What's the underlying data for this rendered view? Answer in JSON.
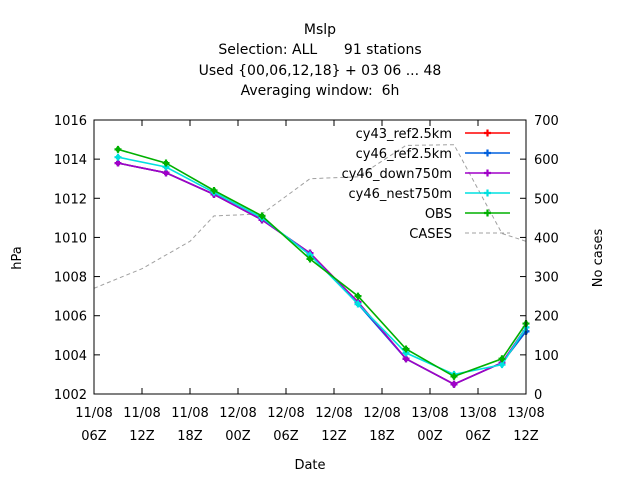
{
  "chart_data": {
    "type": "line",
    "title": "Mslp",
    "subtitle_lines": [
      "Selection: ALL      91 stations",
      "Used {00,06,12,18} + 03 06 ... 48",
      "Averaging window:  6h"
    ],
    "xlabel": "Date",
    "ylabel": "hPa",
    "y2label": "No cases",
    "xlim": [
      0,
      54
    ],
    "ylim": [
      1002,
      1016
    ],
    "y2lim": [
      0,
      700
    ],
    "x_ticks": [
      {
        "x": 0,
        "line1": "11/08",
        "line2": "06Z"
      },
      {
        "x": 6,
        "line1": "11/08",
        "line2": "12Z"
      },
      {
        "x": 12,
        "line1": "11/08",
        "line2": "18Z"
      },
      {
        "x": 18,
        "line1": "12/08",
        "line2": "00Z"
      },
      {
        "x": 24,
        "line1": "12/08",
        "line2": "06Z"
      },
      {
        "x": 30,
        "line1": "12/08",
        "line2": "12Z"
      },
      {
        "x": 36,
        "line1": "12/08",
        "line2": "18Z"
      },
      {
        "x": 42,
        "line1": "13/08",
        "line2": "00Z"
      },
      {
        "x": 48,
        "line1": "13/08",
        "line2": "06Z"
      },
      {
        "x": 54,
        "line1": "13/08",
        "line2": "12Z"
      }
    ],
    "y_ticks": [
      "1002",
      "1004",
      "1006",
      "1008",
      "1010",
      "1012",
      "1014",
      "1016"
    ],
    "y2_ticks": [
      "0",
      "100",
      "200",
      "300",
      "400",
      "500",
      "600",
      "700"
    ],
    "x": [
      3,
      9,
      15,
      21,
      27,
      33,
      39,
      45,
      51,
      57
    ],
    "series": [
      {
        "name": "cy43_ref2.5km",
        "color": "#ff0000",
        "marker": "plus",
        "values": [
          1013.8,
          1013.3,
          1012.2,
          1010.9,
          1009.2,
          1006.7,
          1003.8,
          1002.5,
          1003.6,
          1005.2
        ]
      },
      {
        "name": "cy46_ref2.5km",
        "color": "#0060dd",
        "marker": "plus",
        "values": [
          1013.8,
          1013.3,
          1012.2,
          1010.9,
          1009.2,
          1006.6,
          1003.8,
          1002.5,
          1003.6,
          1005.2
        ]
      },
      {
        "name": "cy46_down750m",
        "color": "#a000c8",
        "marker": "plus",
        "values": [
          1013.8,
          1013.3,
          1012.2,
          1010.9,
          1009.2,
          1006.7,
          1003.8,
          1002.5,
          1003.6,
          1005.4
        ]
      },
      {
        "name": "cy46_nest750m",
        "color": "#00e0e0",
        "marker": "plus",
        "values": [
          1014.1,
          1013.6,
          1012.3,
          1011.0,
          1009.1,
          1006.6,
          1004.1,
          1003.0,
          1003.5,
          1005.4
        ]
      },
      {
        "name": "OBS",
        "color": "#00b000",
        "marker": "plus",
        "values": [
          1014.5,
          1013.8,
          1012.4,
          1011.1,
          1008.9,
          1007.0,
          1004.3,
          1002.9,
          1003.8,
          1005.6
        ]
      }
    ],
    "cases": {
      "name": "CASES",
      "color": "#a0a0a0",
      "axis": "right",
      "x": [
        0,
        6,
        12,
        15,
        21,
        27,
        33,
        39,
        45,
        51,
        54,
        57
      ],
      "values": [
        270,
        320,
        390,
        455,
        460,
        550,
        555,
        635,
        637,
        410,
        390,
        350
      ]
    },
    "legend_position": "top-right",
    "grid": false
  }
}
